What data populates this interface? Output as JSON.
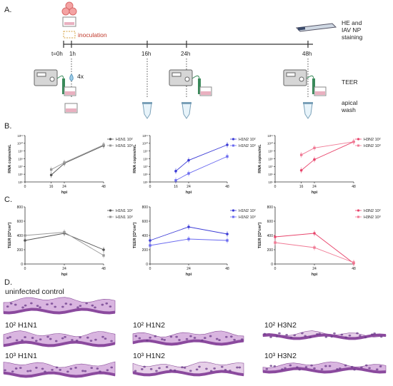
{
  "panels": {
    "A": "A.",
    "B": "B.",
    "C": "C.",
    "D": "D."
  },
  "timeline": {
    "times": [
      "t=0h",
      "1h",
      "16h",
      "24h",
      "48h"
    ],
    "inoculation": "inoculation",
    "repeat": "4x",
    "staining": [
      "HE and",
      "IAV NP",
      "staining"
    ],
    "teer": "TEER",
    "wash": [
      "apical",
      "wash"
    ]
  },
  "colors": {
    "h1n1": "#555555",
    "h1n1_b": "#999999",
    "h1n2": "#3b3bd6",
    "h1n2_b": "#6b6bf0",
    "h3n2": "#e8446b",
    "h3n2_b": "#f07a95",
    "inoc": "#c0392b"
  },
  "chart_data": [
    {
      "type": "line",
      "panel": "B",
      "ylabel": "RNA copies/mL",
      "xlabel": "hpi",
      "yscale": "log",
      "ylim_exp": [
        5,
        11
      ],
      "yticks": [
        "10⁵",
        "10⁶",
        "10⁷",
        "10⁸",
        "10⁹",
        "10¹⁰",
        "10¹¹"
      ],
      "xticks": [
        "0",
        "16",
        "24",
        "48"
      ],
      "series": [
        {
          "name": "H1N1 10²",
          "x": [
            16,
            24,
            48
          ],
          "y": [
            5.9,
            7.4,
            9.7
          ]
        },
        {
          "name": "H1N1 10³",
          "x": [
            16,
            24,
            48
          ],
          "y": [
            6.6,
            7.5,
            9.8
          ]
        }
      ]
    },
    {
      "type": "line",
      "panel": "B",
      "ylabel": "RNA copies/mL",
      "xlabel": "hpi",
      "yscale": "log",
      "ylim_exp": [
        5,
        11
      ],
      "yticks": [
        "10⁵",
        "10⁶",
        "10⁷",
        "10⁸",
        "10⁹",
        "10¹⁰",
        "10¹¹"
      ],
      "xticks": [
        "0",
        "16",
        "24",
        "48"
      ],
      "series": [
        {
          "name": "H1N2 10²",
          "x": [
            16,
            24,
            48
          ],
          "y": [
            6.4,
            7.8,
            9.8
          ]
        },
        {
          "name": "H1N2 10³",
          "x": [
            16,
            24,
            48
          ],
          "y": [
            5.2,
            6.1,
            8.3
          ]
        }
      ]
    },
    {
      "type": "line",
      "panel": "B",
      "ylabel": "RNA copies/mL",
      "xlabel": "hpi",
      "yscale": "log",
      "ylim_exp": [
        5,
        11
      ],
      "yticks": [
        "10⁵",
        "10⁶",
        "10⁷",
        "10⁸",
        "10⁹",
        "10¹⁰",
        "10¹¹"
      ],
      "xticks": [
        "0",
        "16",
        "24",
        "48"
      ],
      "series": [
        {
          "name": "H3N2 10²",
          "x": [
            16,
            24,
            48
          ],
          "y": [
            6.5,
            7.9,
            10.2
          ]
        },
        {
          "name": "H3N2 10³",
          "x": [
            16,
            24,
            48
          ],
          "y": [
            8.5,
            9.4,
            10.2
          ]
        }
      ]
    },
    {
      "type": "line",
      "panel": "C",
      "ylabel": "TEER [Ω*cm²]",
      "xlabel": "hpi",
      "ylim": [
        0,
        800
      ],
      "yticks": [
        "0",
        "200",
        "400",
        "600",
        "800"
      ],
      "xticks": [
        "0",
        "24",
        "48"
      ],
      "series": [
        {
          "name": "H1N1 10²",
          "x": [
            0,
            24,
            48
          ],
          "y": [
            330,
            430,
            200
          ]
        },
        {
          "name": "H1N1 10³",
          "x": [
            0,
            24,
            48
          ],
          "y": [
            400,
            445,
            120
          ]
        }
      ]
    },
    {
      "type": "line",
      "panel": "C",
      "ylabel": "TEER [Ω*cm²]",
      "xlabel": "hpi",
      "ylim": [
        0,
        800
      ],
      "yticks": [
        "0",
        "200",
        "400",
        "600",
        "800"
      ],
      "xticks": [
        "0",
        "24",
        "48"
      ],
      "series": [
        {
          "name": "H1N2 10²",
          "x": [
            0,
            24,
            48
          ],
          "y": [
            330,
            520,
            420
          ]
        },
        {
          "name": "H1N2 10³",
          "x": [
            0,
            24,
            48
          ],
          "y": [
            260,
            350,
            330
          ]
        }
      ]
    },
    {
      "type": "line",
      "panel": "C",
      "ylabel": "TEER [Ω*cm²]",
      "xlabel": "hpi",
      "ylim": [
        0,
        800
      ],
      "yticks": [
        "0",
        "200",
        "400",
        "600",
        "800"
      ],
      "xticks": [
        "0",
        "24",
        "48"
      ],
      "series": [
        {
          "name": "H3N2 10²",
          "x": [
            0,
            24,
            48
          ],
          "y": [
            380,
            430,
            10
          ]
        },
        {
          "name": "H3N2 10³",
          "x": [
            0,
            24,
            48
          ],
          "y": [
            300,
            230,
            20
          ]
        }
      ]
    }
  ],
  "histology": {
    "control": "uninfected control",
    "labels": [
      "10² H1N1",
      "10² H1N2",
      "10² H3N2",
      "10³ H1N1",
      "10³ H1N2",
      "10³ H3N2"
    ]
  }
}
